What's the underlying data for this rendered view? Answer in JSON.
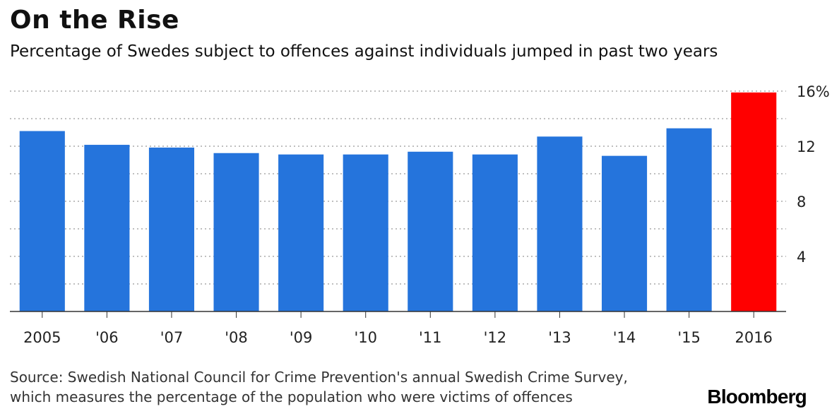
{
  "header": {
    "title": "On the Rise",
    "subtitle": "Percentage of Swedes subject to offences against individuals jumped in past two years"
  },
  "footer": {
    "source_line1": "Source: Swedish National Council for Crime Prevention's annual Swedish Crime Survey,",
    "source_line2": "which measures the percentage of the population who were victims of offences",
    "brand": "Bloomberg"
  },
  "chart_data": {
    "type": "bar",
    "categories": [
      "2005",
      "'06",
      "'07",
      "'08",
      "'09",
      "'10",
      "'11",
      "'12",
      "'13",
      "'14",
      "'15",
      "2016"
    ],
    "values": [
      13.1,
      12.1,
      11.9,
      11.5,
      11.4,
      11.4,
      11.6,
      11.4,
      12.7,
      11.3,
      13.3,
      15.9
    ],
    "ylim": [
      0,
      16
    ],
    "yticks": [
      {
        "value": 4,
        "label": "4"
      },
      {
        "value": 8,
        "label": "8"
      },
      {
        "value": 12,
        "label": "12"
      },
      {
        "value": 16,
        "label": "16%"
      }
    ],
    "gridlines": [
      2,
      4,
      6,
      8,
      10,
      12,
      14,
      16
    ],
    "y_axis_side": "right",
    "grid": true,
    "colors": {
      "default": "#2574dc",
      "highlight": "#ff0000",
      "grid": "#aaaaaa",
      "axis": "#333333"
    },
    "highlight_index": 11
  }
}
